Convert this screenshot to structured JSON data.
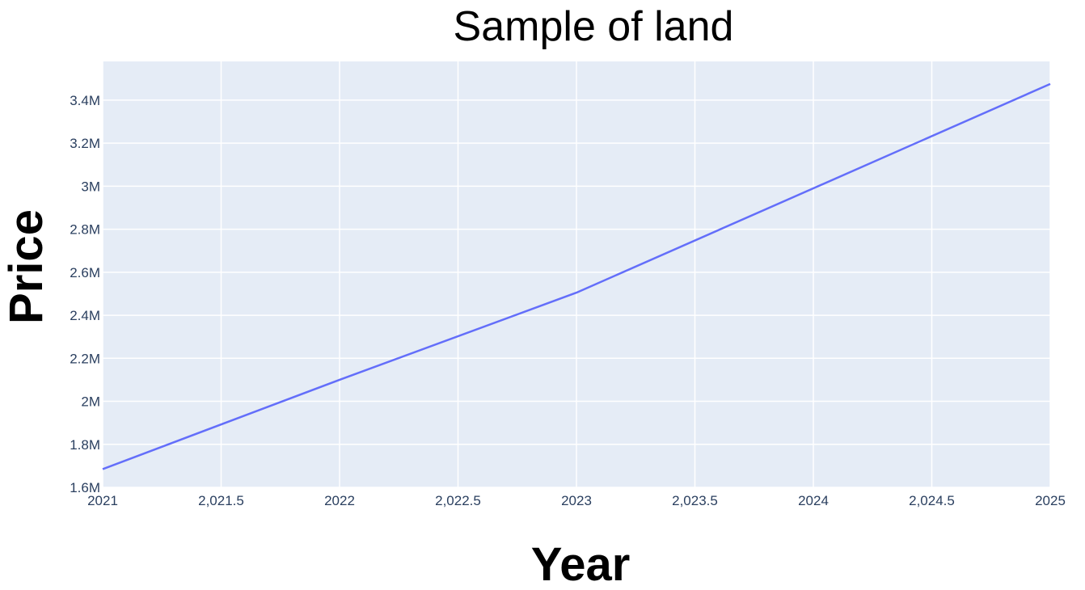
{
  "chart_data": {
    "type": "line",
    "title": "Sample of land",
    "xlabel": "Year",
    "ylabel": "Price",
    "xlim": [
      2021,
      2025
    ],
    "ylim": [
      1600000,
      3580000
    ],
    "xticks": [
      2021,
      2021.5,
      2022,
      2022.5,
      2023,
      2023.5,
      2024,
      2024.5,
      2025
    ],
    "xtick_labels": [
      "2021",
      "2,021.5",
      "2022",
      "2,022.5",
      "2023",
      "2,023.5",
      "2024",
      "2,024.5",
      "2025"
    ],
    "yticks": [
      1600000,
      1800000,
      2000000,
      2200000,
      2400000,
      2600000,
      2800000,
      3000000,
      3200000,
      3400000
    ],
    "ytick_labels": [
      "1.6M",
      "1.8M",
      "2M",
      "2.2M",
      "2.4M",
      "2.6M",
      "2.8M",
      "3M",
      "3.2M",
      "3.4M"
    ],
    "grid": true,
    "series": [
      {
        "x": [
          2021,
          2022,
          2023,
          2024,
          2025
        ],
        "values": [
          1685000,
          2100000,
          2505000,
          2990000,
          3475000
        ]
      }
    ],
    "colors": {
      "line": "#636efa",
      "plot_bg": "#e5ecf6",
      "grid": "#ffffff"
    }
  }
}
